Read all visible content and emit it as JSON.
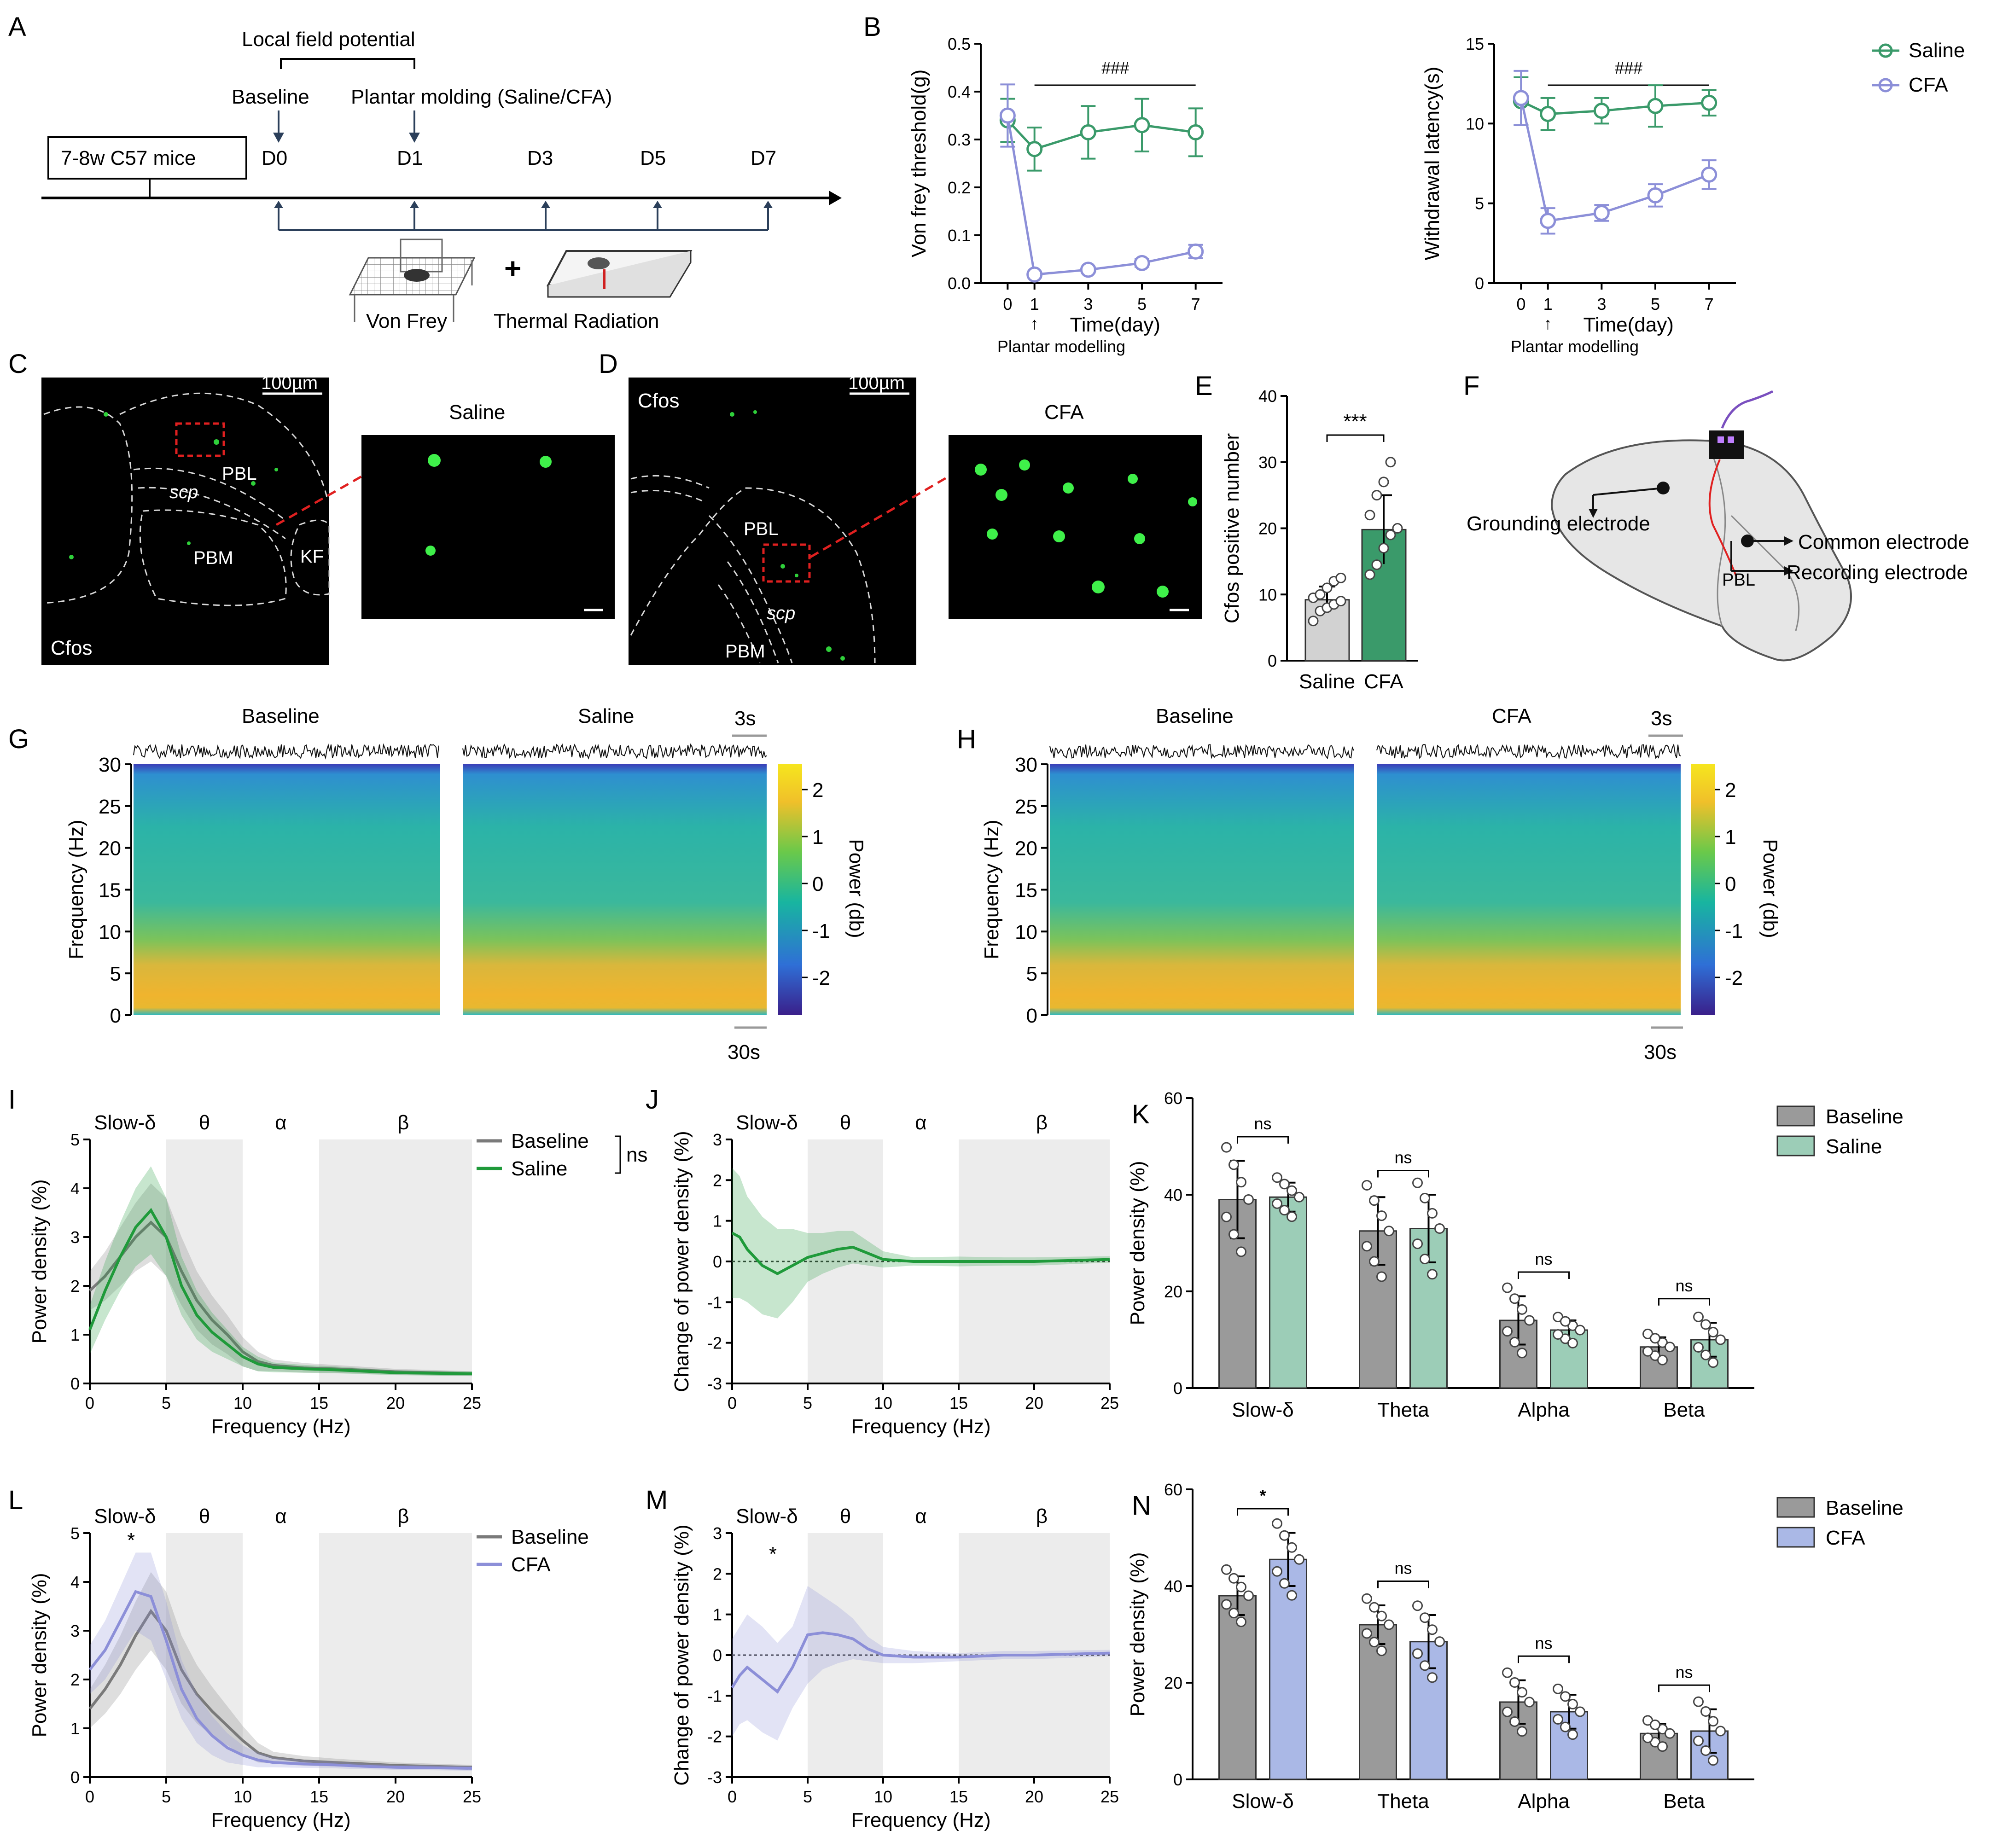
{
  "panels": {
    "A": "A",
    "B": "B",
    "C": "C",
    "D": "D",
    "E": "E",
    "F": "F",
    "G": "G",
    "H": "H",
    "I": "I",
    "J": "J",
    "K": "K",
    "L": "L",
    "M": "M",
    "N": "N"
  },
  "timeline": {
    "lfp": "Local field potential",
    "baseline": "Baseline",
    "molding": "Plantar molding (Saline/CFA)",
    "mice": "7-8w C57 mice",
    "days": [
      "D0",
      "D1",
      "D3",
      "D5",
      "D7"
    ],
    "plus": "+",
    "von_frey": "Von Frey",
    "thermal": "Thermal Radiation"
  },
  "legend_b": {
    "saline": "Saline",
    "cfa": "CFA"
  },
  "colors": {
    "saline": "#3a9a6a",
    "cfa": "#8c8fd8",
    "gray": "#7a7a7a",
    "green": "#1f9a3a",
    "saline_bar": "#9ccdb7",
    "cfa_bar": "#aab8e6",
    "baseline_bar": "#9a9a9a"
  },
  "micro": {
    "c_scale": "100µm",
    "c_pbl": "PBL",
    "c_scp": "scp",
    "c_pbm": "PBM",
    "c_kf": "KF",
    "c_cfos": "Cfos",
    "c_inset": "Saline",
    "d_scale": "100µm",
    "d_cfos": "Cfos",
    "d_pbl": "PBL",
    "d_scp": "scp",
    "d_pbm": "PBM",
    "d_inset": "CFA"
  },
  "brain": {
    "ground": "Grounding electrode",
    "common": "Common electrode",
    "recording": "Recording electrode",
    "pbl": "PBL"
  },
  "spectro": {
    "g_left": "Baseline",
    "g_right": "Saline",
    "h_left": "Baseline",
    "h_right": "CFA",
    "scale_top": "3s",
    "scale_bottom": "30s",
    "ylabel": "Frequency (Hz)",
    "yticks": [
      "0",
      "5",
      "10",
      "15",
      "20",
      "25",
      "30"
    ],
    "cbar_label": "Power (db)",
    "cbar_ticks": [
      "2",
      "1",
      "0",
      "-1",
      "-2"
    ]
  },
  "bands": {
    "delta": "Slow-δ",
    "theta": "θ",
    "alpha": "α",
    "beta": "β"
  },
  "sig": {
    "ns": "ns",
    "star": "*",
    "three": "***",
    "hash": "###",
    "arrow": "↑"
  },
  "chart_data": [
    {
      "id": "B-left",
      "type": "line",
      "xlabel": "Time(day)",
      "ylabel": "Von frey threshold(g)",
      "annotation": "Plantar modelling",
      "x": [
        0,
        1,
        3,
        5,
        7
      ],
      "xticks": [
        "0",
        "1",
        "3",
        "5",
        "7"
      ],
      "ylim": [
        0,
        0.5
      ],
      "yticks": [
        "0.0",
        "0.1",
        "0.2",
        "0.3",
        "0.4",
        "0.5"
      ],
      "series": [
        {
          "name": "Saline",
          "values": [
            0.34,
            0.28,
            0.315,
            0.33,
            0.315
          ],
          "err": [
            0.045,
            0.045,
            0.055,
            0.055,
            0.05
          ]
        },
        {
          "name": "CFA",
          "values": [
            0.35,
            0.018,
            0.028,
            0.042,
            0.066
          ],
          "err": [
            0.065,
            0.006,
            0.006,
            0.008,
            0.014
          ]
        }
      ]
    },
    {
      "id": "B-right",
      "type": "line",
      "xlabel": "Time(day)",
      "ylabel": "Withdrawal latency(s)",
      "annotation": "Plantar modelling",
      "x": [
        0,
        1,
        3,
        5,
        7
      ],
      "xticks": [
        "0",
        "1",
        "3",
        "5",
        "7"
      ],
      "ylim": [
        0,
        15
      ],
      "yticks": [
        "0",
        "5",
        "10",
        "15"
      ],
      "series": [
        {
          "name": "Saline",
          "values": [
            11.4,
            10.6,
            10.8,
            11.1,
            11.3
          ],
          "err": [
            1.5,
            1.0,
            0.8,
            1.3,
            0.8
          ]
        },
        {
          "name": "CFA",
          "values": [
            11.6,
            3.9,
            4.4,
            5.5,
            6.8
          ],
          "err": [
            1.7,
            0.8,
            0.5,
            0.7,
            0.9
          ]
        }
      ]
    },
    {
      "id": "E",
      "type": "bar",
      "ylabel": "Cfos positive number",
      "categories": [
        "Saline",
        "CFA"
      ],
      "values": [
        9.2,
        19.8
      ],
      "err": [
        2.0,
        5.2
      ],
      "ylim": [
        0,
        40
      ],
      "yticks": [
        "0",
        "10",
        "20",
        "30",
        "40"
      ],
      "points": [
        [
          6,
          7.5,
          8,
          8.5,
          9,
          9.5,
          10,
          11,
          12,
          12.5
        ],
        [
          13,
          14.5,
          17,
          19,
          20,
          22,
          25,
          27,
          30
        ]
      ]
    },
    {
      "id": "I",
      "type": "area",
      "xlabel": "Frequency (Hz)",
      "ylabel": "Power density (%)",
      "xlim": [
        0,
        25
      ],
      "ylim": [
        0,
        5
      ],
      "xticks": [
        "0",
        "5",
        "10",
        "15",
        "20",
        "25"
      ],
      "yticks": [
        "0",
        "1",
        "2",
        "3",
        "4",
        "5"
      ],
      "x": [
        0,
        1,
        2,
        3,
        4,
        5,
        6,
        7,
        8,
        9,
        10,
        11,
        12,
        14,
        16,
        18,
        20,
        25
      ],
      "series": [
        {
          "name": "Baseline",
          "values": [
            1.9,
            2.2,
            2.6,
            3.0,
            3.3,
            3.0,
            2.3,
            1.7,
            1.3,
            1.0,
            0.65,
            0.45,
            0.37,
            0.32,
            0.3,
            0.27,
            0.24,
            0.2
          ],
          "sd": [
            0.4,
            0.5,
            0.6,
            0.7,
            0.8,
            0.8,
            0.7,
            0.6,
            0.5,
            0.4,
            0.3,
            0.2,
            0.12,
            0.1,
            0.08,
            0.07,
            0.06,
            0.05
          ]
        },
        {
          "name": "Saline",
          "values": [
            1.1,
            1.9,
            2.6,
            3.2,
            3.55,
            3.0,
            2.0,
            1.4,
            1.05,
            0.8,
            0.55,
            0.4,
            0.33,
            0.3,
            0.28,
            0.25,
            0.22,
            0.2
          ],
          "sd": [
            0.5,
            0.6,
            0.7,
            0.8,
            0.9,
            0.8,
            0.6,
            0.5,
            0.4,
            0.3,
            0.2,
            0.15,
            0.1,
            0.08,
            0.07,
            0.06,
            0.05,
            0.05
          ]
        }
      ]
    },
    {
      "id": "J",
      "type": "area",
      "xlabel": "Frequency (Hz)",
      "ylabel": "Change of power density (%)",
      "xlim": [
        0,
        25
      ],
      "ylim": [
        -3,
        3
      ],
      "xticks": [
        "0",
        "5",
        "10",
        "15",
        "20",
        "25"
      ],
      "yticks": [
        "-3",
        "-2",
        "-1",
        "0",
        "1",
        "2",
        "3"
      ],
      "x": [
        0,
        0.5,
        1,
        2,
        3,
        4,
        5,
        6,
        7,
        8,
        9,
        10,
        12,
        15,
        18,
        20,
        25
      ],
      "series": [
        {
          "name": "Saline",
          "values": [
            0.7,
            0.6,
            0.3,
            -0.1,
            -0.3,
            -0.1,
            0.1,
            0.2,
            0.3,
            0.35,
            0.2,
            0.05,
            0.0,
            0.0,
            0.0,
            0.0,
            0.05
          ],
          "sd": [
            1.6,
            1.5,
            1.3,
            1.2,
            1.1,
            0.9,
            0.6,
            0.5,
            0.45,
            0.4,
            0.3,
            0.2,
            0.1,
            0.12,
            0.1,
            0.1,
            0.08
          ]
        }
      ]
    },
    {
      "id": "K",
      "type": "bar",
      "ylabel": "Power density (%)",
      "categories": [
        "Slow-δ",
        "Theta",
        "Alpha",
        "Beta"
      ],
      "ylim": [
        0,
        60
      ],
      "yticks": [
        "0",
        "20",
        "40",
        "60"
      ],
      "series": [
        {
          "name": "Baseline",
          "values": [
            39,
            32.5,
            14,
            8.5
          ],
          "err": [
            8,
            7,
            5,
            2
          ]
        },
        {
          "name": "Saline",
          "values": [
            39.5,
            33,
            12,
            10
          ],
          "err": [
            3,
            7,
            2,
            3.5
          ]
        }
      ],
      "significance": [
        "ns",
        "ns",
        "ns",
        "ns"
      ]
    },
    {
      "id": "L",
      "type": "area",
      "xlabel": "Frequency (Hz)",
      "ylabel": "Power density (%)",
      "xlim": [
        0,
        25
      ],
      "ylim": [
        0,
        5
      ],
      "xticks": [
        "0",
        "5",
        "10",
        "15",
        "20",
        "25"
      ],
      "yticks": [
        "0",
        "1",
        "2",
        "3",
        "4",
        "5"
      ],
      "x": [
        0,
        1,
        2,
        3,
        4,
        5,
        6,
        7,
        8,
        9,
        10,
        11,
        12,
        14,
        16,
        18,
        20,
        25
      ],
      "series": [
        {
          "name": "Baseline",
          "values": [
            1.4,
            1.8,
            2.3,
            2.9,
            3.4,
            3.0,
            2.2,
            1.7,
            1.35,
            1.05,
            0.75,
            0.5,
            0.4,
            0.33,
            0.3,
            0.27,
            0.24,
            0.2
          ],
          "sd": [
            0.4,
            0.5,
            0.6,
            0.7,
            0.8,
            0.8,
            0.7,
            0.6,
            0.5,
            0.4,
            0.3,
            0.2,
            0.12,
            0.1,
            0.08,
            0.07,
            0.06,
            0.05
          ]
        },
        {
          "name": "CFA",
          "values": [
            2.2,
            2.6,
            3.2,
            3.8,
            3.7,
            2.8,
            1.8,
            1.2,
            0.85,
            0.6,
            0.45,
            0.35,
            0.3,
            0.27,
            0.25,
            0.22,
            0.2,
            0.18
          ],
          "sd": [
            0.5,
            0.6,
            0.7,
            0.8,
            0.9,
            0.8,
            0.6,
            0.5,
            0.4,
            0.3,
            0.2,
            0.15,
            0.1,
            0.08,
            0.07,
            0.06,
            0.05,
            0.05
          ]
        }
      ]
    },
    {
      "id": "M",
      "type": "area",
      "xlabel": "Frequency (Hz)",
      "ylabel": "Change of power density (%)",
      "xlim": [
        0,
        25
      ],
      "ylim": [
        -3,
        3
      ],
      "xticks": [
        "0",
        "5",
        "10",
        "15",
        "20",
        "25"
      ],
      "yticks": [
        "-3",
        "-2",
        "-1",
        "0",
        "1",
        "2",
        "3"
      ],
      "x": [
        0,
        0.5,
        1,
        2,
        3,
        4,
        5,
        6,
        7,
        8,
        9,
        10,
        12,
        15,
        18,
        20,
        25
      ],
      "series": [
        {
          "name": "CFA",
          "values": [
            -0.8,
            -0.5,
            -0.3,
            -0.6,
            -0.9,
            -0.3,
            0.5,
            0.55,
            0.5,
            0.4,
            0.15,
            0.0,
            -0.05,
            -0.05,
            0.0,
            0.0,
            0.05
          ],
          "sd": [
            1.2,
            1.2,
            1.3,
            1.3,
            1.2,
            1.0,
            1.2,
            0.9,
            0.7,
            0.5,
            0.3,
            0.2,
            0.15,
            0.1,
            0.1,
            0.1,
            0.08
          ]
        }
      ]
    },
    {
      "id": "N",
      "type": "bar",
      "ylabel": "Power density (%)",
      "categories": [
        "Slow-δ",
        "Theta",
        "Alpha",
        "Beta"
      ],
      "ylim": [
        0,
        60
      ],
      "yticks": [
        "0",
        "20",
        "40",
        "60"
      ],
      "series": [
        {
          "name": "Baseline",
          "values": [
            38,
            32,
            16,
            9.5
          ],
          "err": [
            4,
            4,
            4.5,
            2
          ]
        },
        {
          "name": "CFA",
          "values": [
            45.5,
            28.5,
            14,
            10
          ],
          "err": [
            5.5,
            5.5,
            3.5,
            4.5
          ]
        }
      ],
      "significance": [
        "*",
        "ns",
        "ns",
        "ns"
      ]
    }
  ]
}
